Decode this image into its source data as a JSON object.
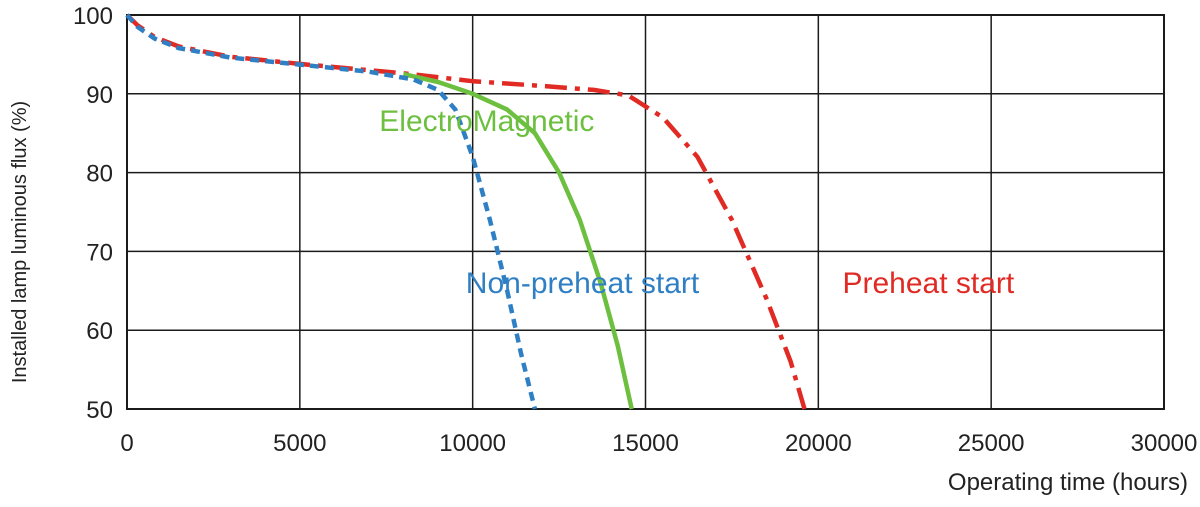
{
  "chart_data": {
    "type": "line",
    "title": "",
    "xlabel": "Operating time (hours)",
    "ylabel": "Installed lamp luminous flux (%)",
    "xlim": [
      0,
      30000
    ],
    "ylim": [
      50,
      100
    ],
    "grid": true,
    "x_ticks": [
      "0",
      "5000",
      "10000",
      "15000",
      "20000",
      "25000",
      "30000"
    ],
    "y_ticks": [
      "50",
      "60",
      "70",
      "80",
      "90",
      "100"
    ],
    "x_tick_values": [
      0,
      5000,
      10000,
      15000,
      20000,
      25000,
      30000
    ],
    "y_tick_values": [
      50,
      60,
      70,
      80,
      90,
      100
    ],
    "series": [
      {
        "name": "Preheat start",
        "color": "#e02a23",
        "style": "dash-dot",
        "x": [
          0,
          300,
          800,
          1500,
          3000,
          5000,
          7000,
          8000,
          10000,
          12000,
          13500,
          14500,
          15500,
          16500,
          17500,
          18500,
          19200,
          19600
        ],
        "y": [
          100,
          98.7,
          97.2,
          96.0,
          94.7,
          93.8,
          93.0,
          92.6,
          91.6,
          91.0,
          90.5,
          89.8,
          87.0,
          82.0,
          74.0,
          64.0,
          56.0,
          50.0
        ]
      },
      {
        "name": "ElectroMagnetic",
        "color": "#6cbf3f",
        "style": "solid",
        "x": [
          8000,
          9000,
          10000,
          11000,
          11800,
          12500,
          13100,
          13700,
          14200,
          14600
        ],
        "y": [
          92.5,
          91.5,
          90.0,
          88.0,
          85.0,
          80.0,
          74.0,
          66.0,
          58.0,
          50.0
        ]
      },
      {
        "name": "Non-preheat start",
        "color": "#2f7fc4",
        "style": "dashed",
        "x": [
          0,
          300,
          800,
          1500,
          3000,
          5000,
          7000,
          8300,
          9000,
          9500,
          10000,
          10500,
          11000,
          11400,
          11800
        ],
        "y": [
          100,
          98.5,
          97.0,
          95.8,
          94.6,
          93.7,
          92.8,
          91.8,
          90.5,
          88.0,
          82.0,
          74.0,
          65.0,
          57.0,
          50.0
        ]
      }
    ],
    "annotations": [
      {
        "text": "ElectroMagnetic",
        "series": "ElectroMagnetic",
        "x": 7300,
        "y": 85.3
      },
      {
        "text": "Non-preheat start",
        "series": "Non-preheat start",
        "x": 9800,
        "y": 64.7
      },
      {
        "text": "Preheat start",
        "series": "Preheat start",
        "x": 20700,
        "y": 64.7
      }
    ]
  }
}
